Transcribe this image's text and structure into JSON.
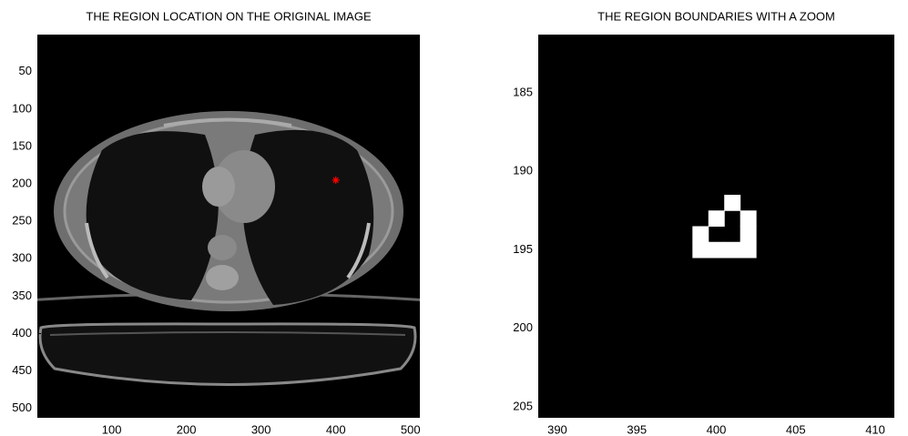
{
  "chart_data": [
    {
      "type": "image",
      "title": "THE REGION LOCATION ON THE ORIGINAL IMAGE",
      "xlim": [
        0.5,
        512.5
      ],
      "ylim": [
        0.5,
        512.5
      ],
      "reverse_y": true,
      "xticks": [
        100,
        200,
        300,
        400,
        500
      ],
      "yticks": [
        50,
        100,
        150,
        200,
        250,
        300,
        350,
        400,
        450,
        500
      ],
      "series": [
        {
          "color": "#ff0000",
          "marker": "*",
          "x": [
            400
          ],
          "y": [
            195
          ]
        }
      ]
    },
    {
      "type": "image",
      "title": "THE REGION BOUNDARIES WITH A ZOOM",
      "xlim": [
        388.8,
        411.2
      ],
      "ylim": [
        181.3,
        205.7
      ],
      "reverse_y": true,
      "xticks": [
        390,
        395,
        400,
        405,
        410
      ],
      "yticks": [
        185,
        190,
        195,
        200,
        205
      ],
      "series": [
        {
          "color": "#ffffff",
          "marker": "square",
          "x": [
            401,
            400,
            402,
            399,
            402,
            399,
            400,
            401,
            402
          ],
          "y": [
            192,
            193,
            193,
            194,
            194,
            195,
            195,
            195,
            195
          ]
        }
      ]
    }
  ]
}
